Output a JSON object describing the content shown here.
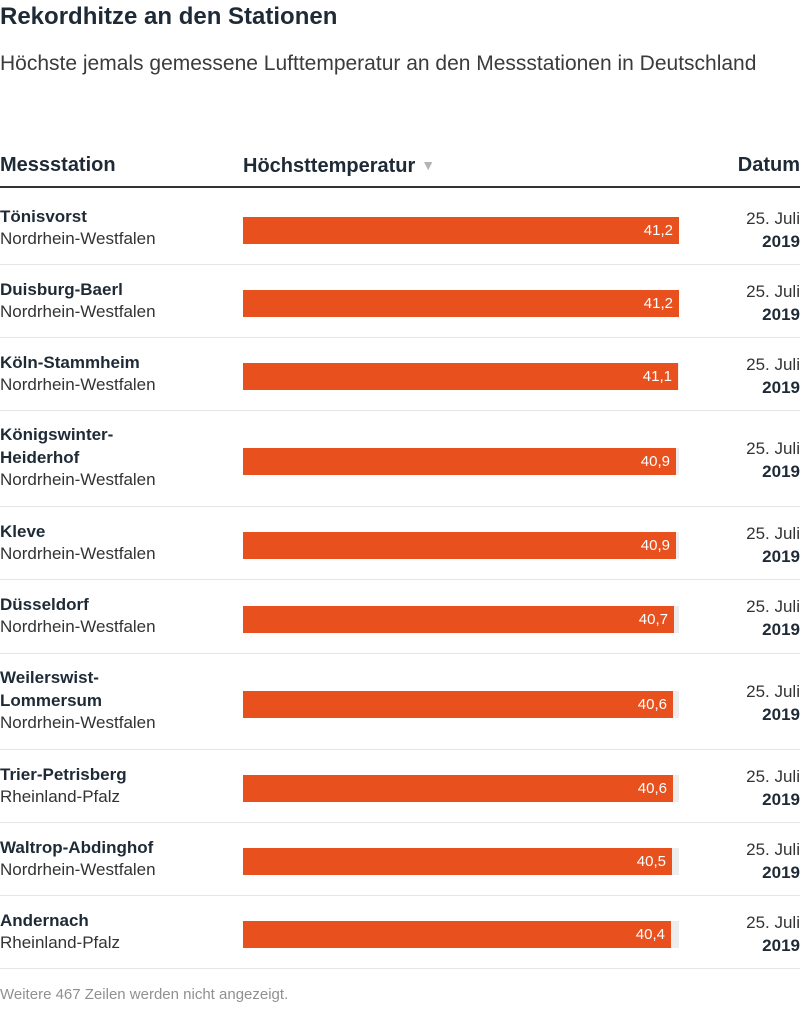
{
  "title": "Rekordhitze an den Stationen",
  "subtitle": "Höchste jemals gemessene Lufttemperatur an den Messstationen in Deutschland",
  "table": {
    "col_station": "Messstation",
    "col_temp": "Höchsttemperatur",
    "col_date": "Datum",
    "sort_indicator": "▼"
  },
  "footer": "Weitere 467 Zeilen werden nicht angezeigt.",
  "colors": {
    "bar": "#e8501e",
    "track": "#ededed"
  },
  "chart_data": {
    "type": "bar",
    "orientation": "horizontal",
    "xlim": [
      0,
      41.2
    ],
    "rows": [
      {
        "station": "Tönisvorst",
        "state": "Nordrhein-Westfalen",
        "value": 41.2,
        "label": "41,2",
        "day": "25. Juli",
        "year": "2019"
      },
      {
        "station": "Duisburg-Baerl",
        "state": "Nordrhein-Westfalen",
        "value": 41.2,
        "label": "41,2",
        "day": "25. Juli",
        "year": "2019"
      },
      {
        "station": "Köln-Stammheim",
        "state": "Nordrhein-Westfalen",
        "value": 41.1,
        "label": "41,1",
        "day": "25. Juli",
        "year": "2019"
      },
      {
        "station": "Königswinter-Heiderhof",
        "state": "Nordrhein-Westfalen",
        "value": 40.9,
        "label": "40,9",
        "day": "25. Juli",
        "year": "2019"
      },
      {
        "station": "Kleve",
        "state": "Nordrhein-Westfalen",
        "value": 40.9,
        "label": "40,9",
        "day": "25. Juli",
        "year": "2019"
      },
      {
        "station": "Düsseldorf",
        "state": "Nordrhein-Westfalen",
        "value": 40.7,
        "label": "40,7",
        "day": "25. Juli",
        "year": "2019"
      },
      {
        "station": "Weilerswist-Lommersum",
        "state": "Nordrhein-Westfalen",
        "value": 40.6,
        "label": "40,6",
        "day": "25. Juli",
        "year": "2019"
      },
      {
        "station": "Trier-Petrisberg",
        "state": "Rheinland-Pfalz",
        "value": 40.6,
        "label": "40,6",
        "day": "25. Juli",
        "year": "2019"
      },
      {
        "station": "Waltrop-Abdinghof",
        "state": "Nordrhein-Westfalen",
        "value": 40.5,
        "label": "40,5",
        "day": "25. Juli",
        "year": "2019"
      },
      {
        "station": "Andernach",
        "state": "Rheinland-Pfalz",
        "value": 40.4,
        "label": "40,4",
        "day": "25. Juli",
        "year": "2019"
      }
    ]
  }
}
